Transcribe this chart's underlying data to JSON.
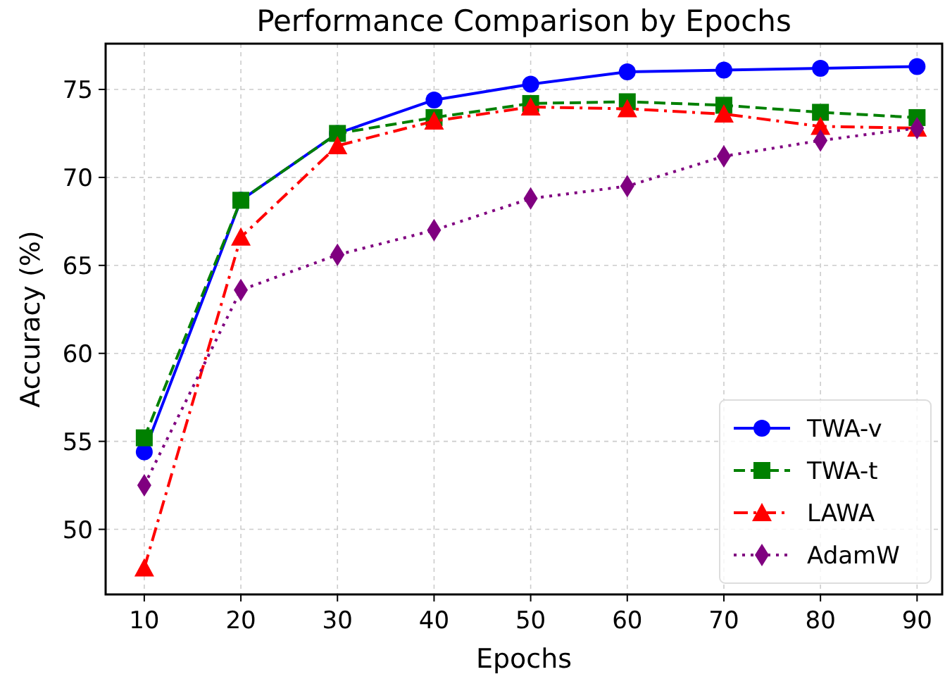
{
  "chart_data": {
    "type": "line",
    "title": "Performance Comparison by Epochs",
    "xlabel": "Epochs",
    "ylabel": "Accuracy (%)",
    "x": [
      10,
      20,
      30,
      40,
      50,
      60,
      70,
      80,
      90
    ],
    "series": [
      {
        "name": "TWA-v",
        "color": "#0000ff",
        "marker": "circle",
        "line_style": "solid",
        "values": [
          54.4,
          68.7,
          72.5,
          74.4,
          75.3,
          76.0,
          76.1,
          76.2,
          76.3
        ]
      },
      {
        "name": "TWA-t",
        "color": "#008000",
        "marker": "square",
        "line_style": "dashed",
        "values": [
          55.2,
          68.7,
          72.5,
          73.4,
          74.2,
          74.3,
          74.1,
          73.7,
          73.4
        ]
      },
      {
        "name": "LAWA",
        "color": "#ff0000",
        "marker": "triangle",
        "line_style": "dashdot",
        "values": [
          47.8,
          66.6,
          71.8,
          73.2,
          74.0,
          73.9,
          73.6,
          72.9,
          72.8
        ]
      },
      {
        "name": "AdamW",
        "color": "#800080",
        "marker": "diamond",
        "line_style": "dotted",
        "values": [
          52.5,
          63.6,
          65.6,
          67.0,
          68.8,
          69.5,
          71.2,
          72.1,
          72.8
        ]
      }
    ],
    "xlim": [
      6,
      92.6
    ],
    "ylim": [
      46.3,
      77.6
    ],
    "xticks": [
      10,
      20,
      30,
      40,
      50,
      60,
      70,
      80,
      90
    ],
    "yticks": [
      50,
      55,
      60,
      65,
      70,
      75
    ],
    "grid": true,
    "legend": "bottom right"
  }
}
